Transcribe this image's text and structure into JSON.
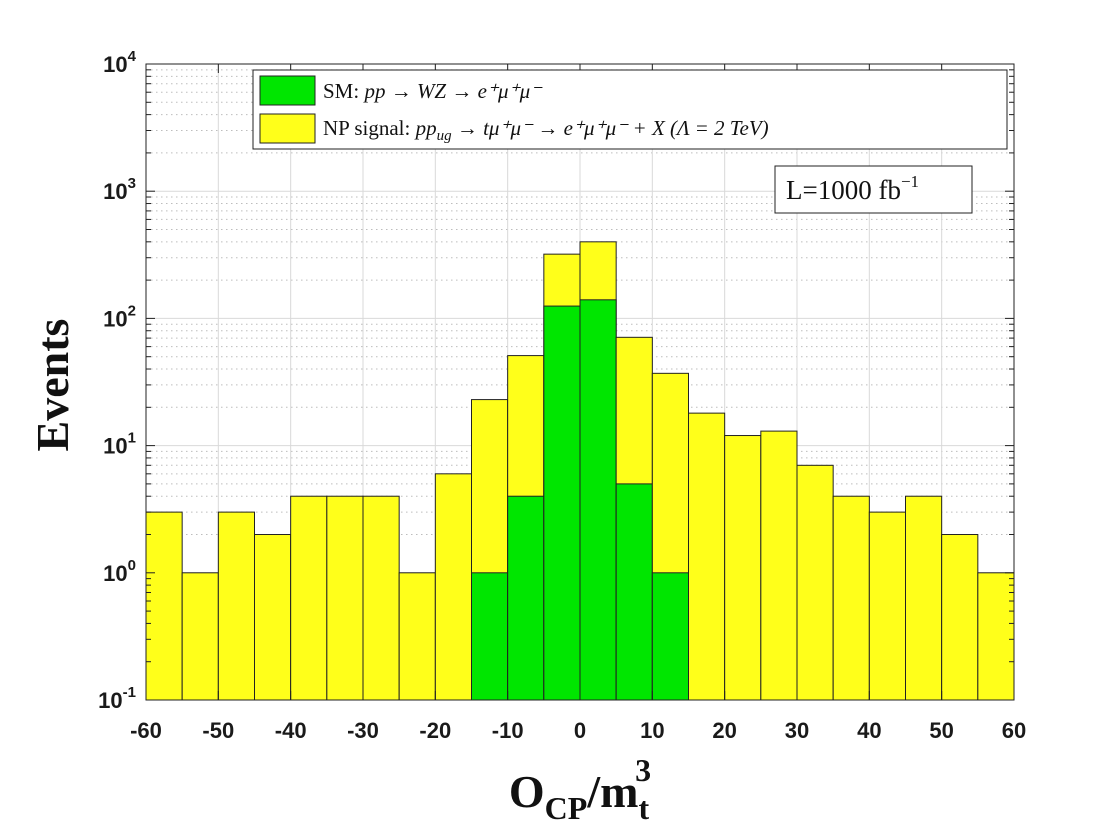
{
  "chart_data": {
    "type": "bar",
    "stacked": true,
    "y_scale": "log",
    "ylim": [
      0.1,
      10000
    ],
    "xlim": [
      -60,
      60
    ],
    "bin_edges": [
      -60,
      -55,
      -50,
      -45,
      -40,
      -35,
      -30,
      -25,
      -20,
      -15,
      -10,
      -5,
      0,
      5,
      10,
      15,
      20,
      25,
      30,
      35,
      40,
      45,
      50,
      55,
      60
    ],
    "x_ticks": [
      -60,
      -50,
      -40,
      -30,
      -20,
      -10,
      0,
      10,
      20,
      30,
      40,
      50,
      60
    ],
    "y_ticks": [
      {
        "base": "10",
        "exp": "-1"
      },
      {
        "base": "10",
        "exp": "0"
      },
      {
        "base": "10",
        "exp": "1"
      },
      {
        "base": "10",
        "exp": "2"
      },
      {
        "base": "10",
        "exp": "3"
      },
      {
        "base": "10",
        "exp": "4"
      }
    ],
    "grid": true,
    "legend_position": "top-left",
    "xlabel": {
      "main": "O",
      "sub": "CP",
      "slash": "/m",
      "sub2": "t",
      "sup": "3"
    },
    "ylabel": "Events",
    "series": [
      {
        "name": "NP signal: pp_ug → tμ⁺μ⁻ → e⁺μ⁺μ⁻ + X (Λ = 2 TeV)",
        "color": "#ffff1a",
        "stack_totals": [
          3,
          1,
          3,
          2,
          4,
          4,
          4,
          1,
          6,
          23,
          51,
          320,
          400,
          71,
          37,
          18,
          12,
          13,
          7,
          4,
          3,
          4,
          2,
          1
        ]
      },
      {
        "name": "SM: pp → WZ → e⁺μ⁺μ⁻",
        "color": "#00e600",
        "values": [
          0,
          0,
          0,
          0,
          0,
          0,
          0,
          0,
          0,
          1,
          4,
          125,
          140,
          5,
          1,
          0,
          0,
          0,
          0,
          0,
          0,
          0,
          0,
          0
        ]
      }
    ],
    "annotation": "L=1000 fb⁻¹"
  },
  "legend": {
    "sm": {
      "prefix": "SM: ",
      "math": "pp → WZ → e⁺μ⁺μ⁻"
    },
    "np": {
      "prefix": "NP signal: ",
      "math": "pp",
      "sub": "ug",
      "math2": " → tμ⁺μ⁻ → e⁺μ⁺μ⁻ + X (Λ = 2 TeV)"
    }
  },
  "lumi": {
    "text": "L=1000 fb",
    "sup": "−1"
  }
}
